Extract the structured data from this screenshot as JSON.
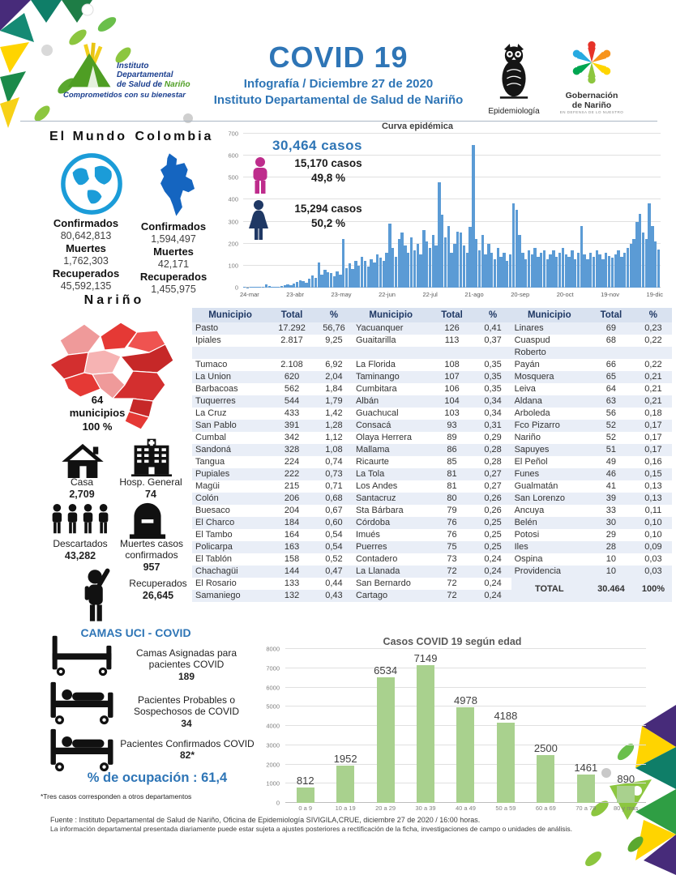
{
  "header": {
    "title": "COVID 19",
    "subtitle1": "Infografía / Diciembre 27 de 2020",
    "subtitle2": "Instituto Departamental de Salud de Nariño",
    "institute": {
      "name_l1": "Instituto",
      "name_l2": "Departamental",
      "name_l3": "de Salud de ",
      "name_hl": "Nariño",
      "tagline": "Comprometidos con su bienestar"
    },
    "epidemiologia_label": "Epidemiología",
    "gobernacion_l1": "Gobernación",
    "gobernacion_l2": "de Nariño",
    "gobernacion_tag": "EN DEFENSA DE LO NUESTRO"
  },
  "world": {
    "title": "El Mundo",
    "confirmed_label": "Confirmados",
    "confirmed": "80,642,813",
    "deaths_label": "Muertes",
    "deaths": "1,762,303",
    "recovered_label": "Recuperados",
    "recovered": "45,592,135"
  },
  "colombia": {
    "title": "Colombia",
    "confirmed_label": "Confirmados",
    "confirmed": "1,594,497",
    "deaths_label": "Muertes",
    "deaths": "42,171",
    "recovered_label": "Recuperados",
    "recovered": "1,455,975"
  },
  "cases_summary": {
    "total": "30,464  casos",
    "male_cases": "15,170  casos",
    "male_pct": "49,8 %",
    "female_cases": "15,294  casos",
    "female_pct": "50,2 %"
  },
  "narino": {
    "title": "Nariño",
    "municipios_count": "64",
    "municipios_label": "municipios",
    "municipios_pct": "100 %",
    "stats": [
      {
        "icon": "house-icon",
        "label": "Casa",
        "value": "2,709"
      },
      {
        "icon": "hospital-icon",
        "label": "Hosp. General",
        "value": "74"
      },
      {
        "icon": "people-group-icon",
        "label": "Descartados",
        "value": "43,282"
      },
      {
        "icon": "tombstone-icon",
        "label": "Muertes casos confirmados",
        "value": "957"
      },
      {
        "icon": "recovered-person-icon",
        "label": "Recuperados",
        "value": "26,645"
      }
    ]
  },
  "uci": {
    "title": "CAMAS UCI - COVID",
    "items": [
      {
        "icon": "bed-empty-icon",
        "label": "Camas Asignadas para pacientes COVID",
        "value": "189"
      },
      {
        "icon": "bed-patient-icon",
        "label": "Pacientes Probables o Sospechosos de COVID",
        "value": "34"
      },
      {
        "icon": "bed-patient-icon",
        "label": "Pacientes Confirmados COVID",
        "value": "82*"
      }
    ],
    "occupancy": "% de ocupación : 61,4",
    "footnote": "*Tres casos corresponden a otros departamentos"
  },
  "table": {
    "headers": [
      "Municipio",
      "Total",
      "%"
    ],
    "rows": [
      {
        "c": [
          [
            "Pasto",
            "17.292",
            "56,76"
          ],
          [
            "Yacuanquer",
            "126",
            "0,41"
          ],
          [
            "Linares",
            "69",
            "0,23"
          ]
        ]
      },
      {
        "c": [
          [
            "Ipiales",
            "2.817",
            "9,25"
          ],
          [
            "Guaitarilla",
            "113",
            "0,37"
          ],
          [
            "Cuaspud",
            "68",
            "0,22"
          ]
        ]
      },
      {
        "c": [
          [
            "",
            "",
            ""
          ],
          [
            "",
            "",
            ""
          ],
          [
            "Roberto",
            "",
            ""
          ]
        ]
      },
      {
        "c": [
          [
            "Tumaco",
            "2.108",
            "6,92"
          ],
          [
            "La Florida",
            "108",
            "0,35"
          ],
          [
            "Payán",
            "66",
            "0,22"
          ]
        ]
      },
      {
        "c": [
          [
            "La Union",
            "620",
            "2,04"
          ],
          [
            "Taminango",
            "107",
            "0,35"
          ],
          [
            "Mosquera",
            "65",
            "0,21"
          ]
        ]
      },
      {
        "c": [
          [
            "Barbacoas",
            "562",
            "1,84"
          ],
          [
            "Cumbitara",
            "106",
            "0,35"
          ],
          [
            "Leiva",
            "64",
            "0,21"
          ]
        ]
      },
      {
        "c": [
          [
            "Tuquerres",
            "544",
            "1,79"
          ],
          [
            "Albán",
            "104",
            "0,34"
          ],
          [
            "Aldana",
            "63",
            "0,21"
          ]
        ]
      },
      {
        "c": [
          [
            "La Cruz",
            "433",
            "1,42"
          ],
          [
            "Guachucal",
            "103",
            "0,34"
          ],
          [
            "Arboleda",
            "56",
            "0,18"
          ]
        ]
      },
      {
        "c": [
          [
            "San Pablo",
            "391",
            "1,28"
          ],
          [
            "Consacá",
            "93",
            "0,31"
          ],
          [
            "Fco Pizarro",
            "52",
            "0,17"
          ]
        ]
      },
      {
        "c": [
          [
            "Cumbal",
            "342",
            "1,12"
          ],
          [
            "Olaya Herrera",
            "89",
            "0,29"
          ],
          [
            "Nariño",
            "52",
            "0,17"
          ]
        ]
      },
      {
        "c": [
          [
            "Sandoná",
            "328",
            "1,08"
          ],
          [
            "Mallama",
            "86",
            "0,28"
          ],
          [
            "Sapuyes",
            "51",
            "0,17"
          ]
        ]
      },
      {
        "c": [
          [
            "Tangua",
            "224",
            "0,74"
          ],
          [
            "Ricaurte",
            "85",
            "0,28"
          ],
          [
            "El Peñol",
            "49",
            "0,16"
          ]
        ]
      },
      {
        "c": [
          [
            "Pupiales",
            "222",
            "0,73"
          ],
          [
            "La Tola",
            "81",
            "0,27"
          ],
          [
            "Funes",
            "46",
            "0,15"
          ]
        ]
      },
      {
        "c": [
          [
            "Magüi",
            "215",
            "0,71"
          ],
          [
            "Los Andes",
            "81",
            "0,27"
          ],
          [
            "Gualmatán",
            "41",
            "0,13"
          ]
        ]
      },
      {
        "c": [
          [
            "Colón",
            "206",
            "0,68"
          ],
          [
            "Santacruz",
            "80",
            "0,26"
          ],
          [
            "San Lorenzo",
            "39",
            "0,13"
          ]
        ]
      },
      {
        "c": [
          [
            "Buesaco",
            "204",
            "0,67"
          ],
          [
            "Sta Bárbara",
            "79",
            "0,26"
          ],
          [
            "Ancuya",
            "33",
            "0,11"
          ]
        ]
      },
      {
        "c": [
          [
            "El Charco",
            "184",
            "0,60"
          ],
          [
            "Córdoba",
            "76",
            "0,25"
          ],
          [
            "Belén",
            "30",
            "0,10"
          ]
        ]
      },
      {
        "c": [
          [
            "El Tambo",
            "164",
            "0,54"
          ],
          [
            "Imués",
            "76",
            "0,25"
          ],
          [
            "Potosi",
            "29",
            "0,10"
          ]
        ]
      },
      {
        "c": [
          [
            "Policarpa",
            "163",
            "0,54"
          ],
          [
            "Puerres",
            "75",
            "0,25"
          ],
          [
            "Iles",
            "28",
            "0,09"
          ]
        ]
      },
      {
        "c": [
          [
            "El Tablón",
            "158",
            "0,52"
          ],
          [
            "Contadero",
            "73",
            "0,24"
          ],
          [
            "Ospina",
            "10",
            "0,03"
          ]
        ]
      },
      {
        "c": [
          [
            "Chachagüi",
            "144",
            "0,47"
          ],
          [
            "La Llanada",
            "72",
            "0,24"
          ],
          [
            "Providencia",
            "10",
            "0,03"
          ]
        ]
      },
      {
        "c": [
          [
            "El Rosario",
            "133",
            "0,44"
          ],
          [
            "San Bernardo",
            "72",
            "0,24"
          ],
          {
            "total_row": true,
            "name": "TOTAL",
            "total": "30.464",
            "pct": "100%"
          }
        ]
      },
      {
        "c": [
          [
            "Samaniego",
            "132",
            "0,43"
          ],
          [
            "Cartago",
            "72",
            "0,24"
          ],
          "skip"
        ]
      }
    ]
  },
  "footer": {
    "line1": "Fuente : Instituto Departamental de Salud de Nariño, Oficina de Epidemiología SIVIGILA,CRUE,  diciembre  27  de  2020 /  16:00  horas.",
    "line2": "La información departamental presentada diariamente puede estar sujeta a ajustes posteriores a  rectificación de la ficha, investigaciones de campo o unidades de análisis."
  },
  "colors": {
    "accent_blue": "#2E75B6",
    "male_pink": "#BE2C8C",
    "female_navy": "#1F3864",
    "epi_bar": "#5B9BD5",
    "age_bar": "#A9D18E",
    "table_header_bg": "#D9E2F0",
    "row_alt": "#E9EEF7"
  },
  "chart_data": [
    {
      "id": "epi_curve",
      "type": "bar",
      "title": "Curva epidémica",
      "xlabel": "",
      "ylabel": "",
      "ylim": [
        0,
        700
      ],
      "yticks": [
        0,
        100,
        200,
        300,
        400,
        500,
        600,
        700
      ],
      "x_tick_labels": [
        "24-mar",
        "23-abr",
        "23-may",
        "22-jun",
        "22-jul",
        "21-ago",
        "20-sep",
        "20-oct",
        "19-nov",
        "19-dic"
      ],
      "note": "Daily case counts estimated from bar heights (~2-day bins, 24-mar-2020 to 19-dic-2020); peak ~650 near 21-ago.",
      "values": [
        2,
        1,
        3,
        2,
        4,
        3,
        2,
        16,
        6,
        4,
        3,
        5,
        8,
        10,
        14,
        12,
        18,
        25,
        35,
        30,
        22,
        40,
        55,
        45,
        115,
        60,
        80,
        70,
        65,
        50,
        75,
        60,
        220,
        90,
        110,
        85,
        120,
        100,
        140,
        120,
        95,
        130,
        115,
        150,
        135,
        120,
        160,
        290,
        180,
        140,
        220,
        250,
        190,
        160,
        230,
        170,
        200,
        150,
        260,
        210,
        180,
        240,
        190,
        480,
        330,
        230,
        280,
        160,
        200,
        255,
        250,
        190,
        160,
        275,
        650,
        220,
        170,
        240,
        150,
        200,
        160,
        130,
        180,
        140,
        160,
        120,
        150,
        385,
        355,
        240,
        160,
        130,
        170,
        150,
        180,
        140,
        160,
        170,
        130,
        150,
        170,
        140,
        160,
        180,
        150,
        140,
        170,
        130,
        160,
        280,
        150,
        130,
        160,
        140,
        170,
        150,
        130,
        160,
        145,
        135,
        150,
        170,
        140,
        160,
        180,
        200,
        220,
        300,
        335,
        250,
        220,
        385,
        280,
        210,
        175
      ],
      "grid": true,
      "legend": false
    },
    {
      "id": "age_chart",
      "type": "bar",
      "title": "Casos COVID 19  según edad",
      "xlabel": "",
      "ylabel": "",
      "categories": [
        "0 a 9",
        "10 a 19",
        "20 a 29",
        "30 a 39",
        "40 a 49",
        "50 a 59",
        "60 a 69",
        "70 a 79",
        "80 y mas"
      ],
      "values": [
        812,
        1952,
        6534,
        7149,
        4978,
        4188,
        2500,
        1461,
        890
      ],
      "ylim": [
        0,
        8000
      ],
      "yticks": [
        0,
        1000,
        2000,
        3000,
        4000,
        5000,
        6000,
        7000,
        8000
      ],
      "grid": true,
      "legend": false
    }
  ]
}
